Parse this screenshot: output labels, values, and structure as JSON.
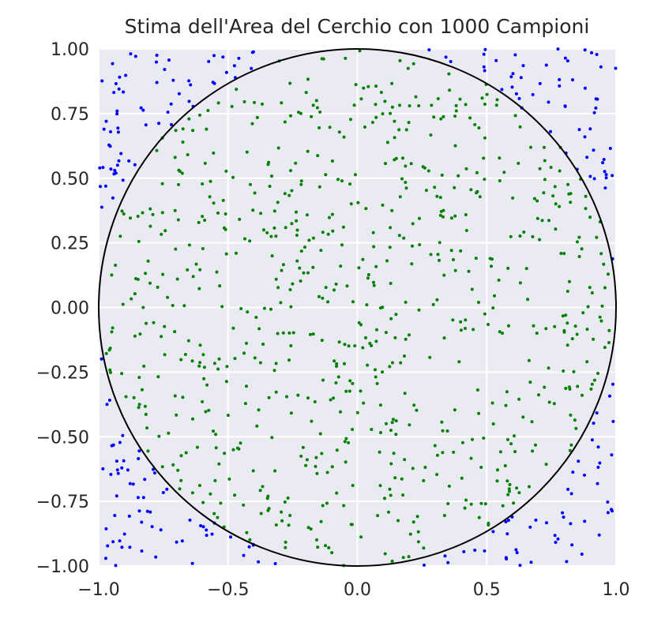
{
  "chart_data": {
    "type": "scatter",
    "title": "Stima dell'Area del Cerchio con 1000 Campioni",
    "xlabel": "",
    "ylabel": "",
    "xlim": [
      -1.0,
      1.0
    ],
    "ylim": [
      -1.0,
      1.0
    ],
    "x_ticks": [
      "−1.0",
      "−0.5",
      "0.0",
      "0.5",
      "1.0"
    ],
    "y_ticks": [
      "1.00",
      "0.75",
      "0.50",
      "0.25",
      "0.00",
      "−0.25",
      "−0.50",
      "−0.75",
      "−1.00"
    ],
    "grid": true,
    "sample_count": 1000,
    "background_color": "#eaeaf2",
    "grid_color": "#ffffff",
    "circle": {
      "center": [
        0,
        0
      ],
      "radius": 1,
      "color": "#000000"
    },
    "series": [
      {
        "color": "#008000",
        "rule": "x*x + y*y <= 1"
      },
      {
        "color": "#0000ff",
        "rule": "x*x + y*y > 1"
      }
    ]
  }
}
